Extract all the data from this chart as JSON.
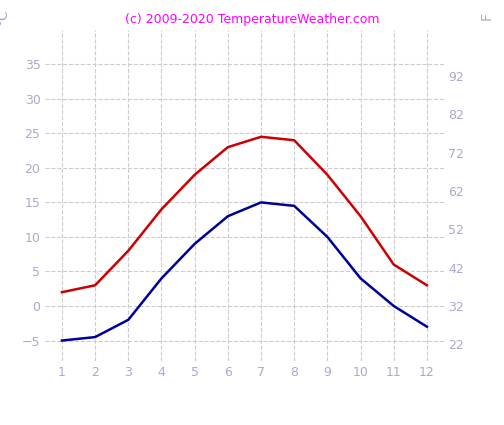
{
  "months": [
    1,
    2,
    3,
    4,
    5,
    6,
    7,
    8,
    9,
    10,
    11,
    12
  ],
  "air_temp_c": [
    2,
    3,
    8,
    14,
    19,
    23,
    24.5,
    24,
    19,
    13,
    6,
    3
  ],
  "water_temp_c": [
    -5,
    -4.5,
    -2,
    4,
    9,
    13,
    15,
    14.5,
    10,
    4,
    0,
    -3
  ],
  "air_color": "#cc0000",
  "water_color": "#000099",
  "title": "(c) 2009-2020 TemperatureWeather.com",
  "title_color": "#ff00ff",
  "ylabel_left": "°C",
  "ylabel_right": "F",
  "ylim_c": [
    -8,
    40
  ],
  "ylim_f": [
    17.6,
    104
  ],
  "yticks_c": [
    -5,
    0,
    5,
    10,
    15,
    20,
    25,
    30,
    35
  ],
  "yticks_f": [
    22,
    32,
    42,
    52,
    62,
    72,
    82,
    92
  ],
  "grid_color": "#cccccc",
  "tick_label_color": "#aaaacc",
  "background_color": "#ffffff",
  "line_width": 1.8,
  "tick_fontsize": 9,
  "title_fontsize": 9
}
